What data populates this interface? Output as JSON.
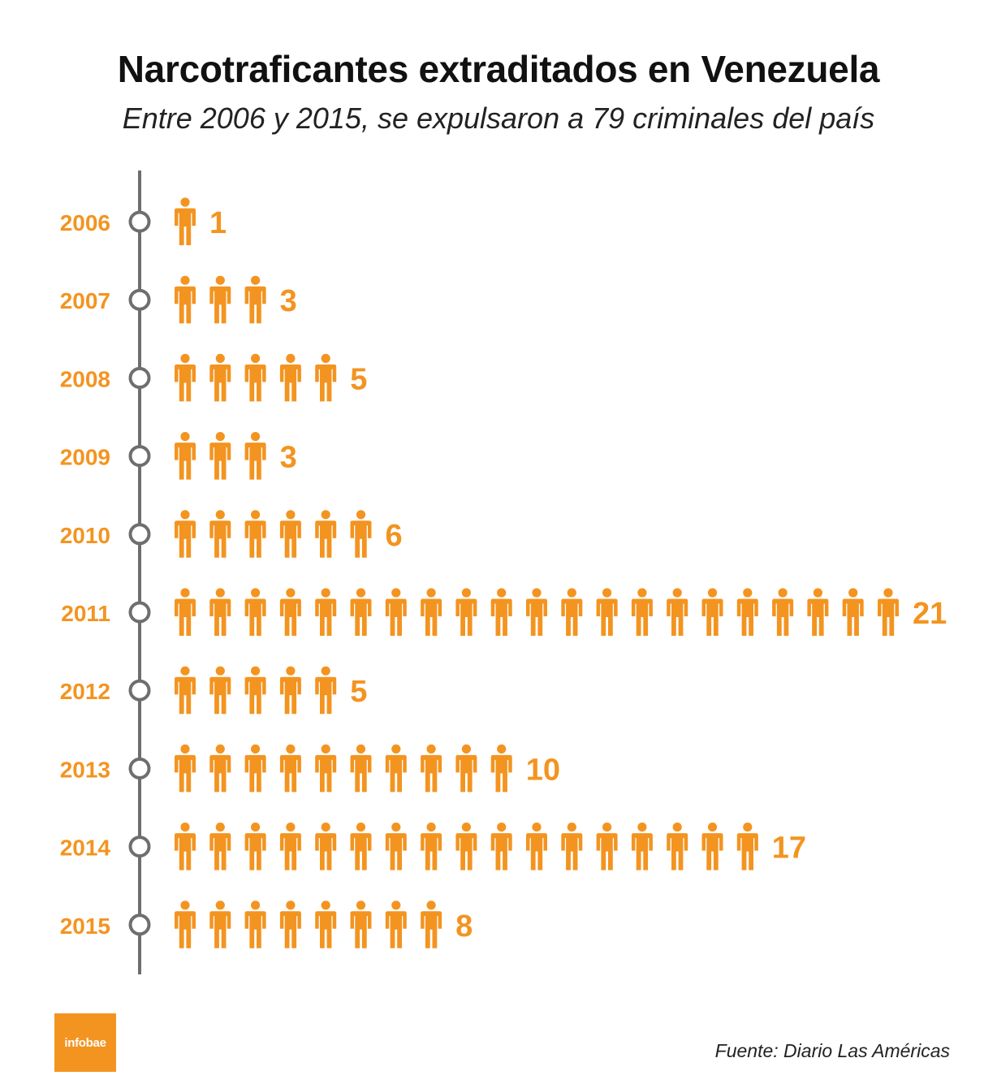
{
  "colors": {
    "accent": "#f39420",
    "timeline": "#6e6e6e",
    "text": "#111111"
  },
  "icon": "person-icon",
  "logo": {
    "text": "infobae",
    "color": "#f39420"
  },
  "source": "Fuente: Diario Las Américas",
  "chart_data": {
    "type": "pictogram",
    "title": "Narcotraficantes extraditados en Venezuela",
    "subtitle": "Entre 2006 y 2015, se expulsaron a 79 criminales del país",
    "categories": [
      "2006",
      "2007",
      "2008",
      "2009",
      "2010",
      "2011",
      "2012",
      "2013",
      "2014",
      "2015"
    ],
    "values": [
      1,
      3,
      5,
      3,
      6,
      21,
      5,
      10,
      17,
      8
    ],
    "total": 79,
    "unit_icon": "person-icon"
  }
}
